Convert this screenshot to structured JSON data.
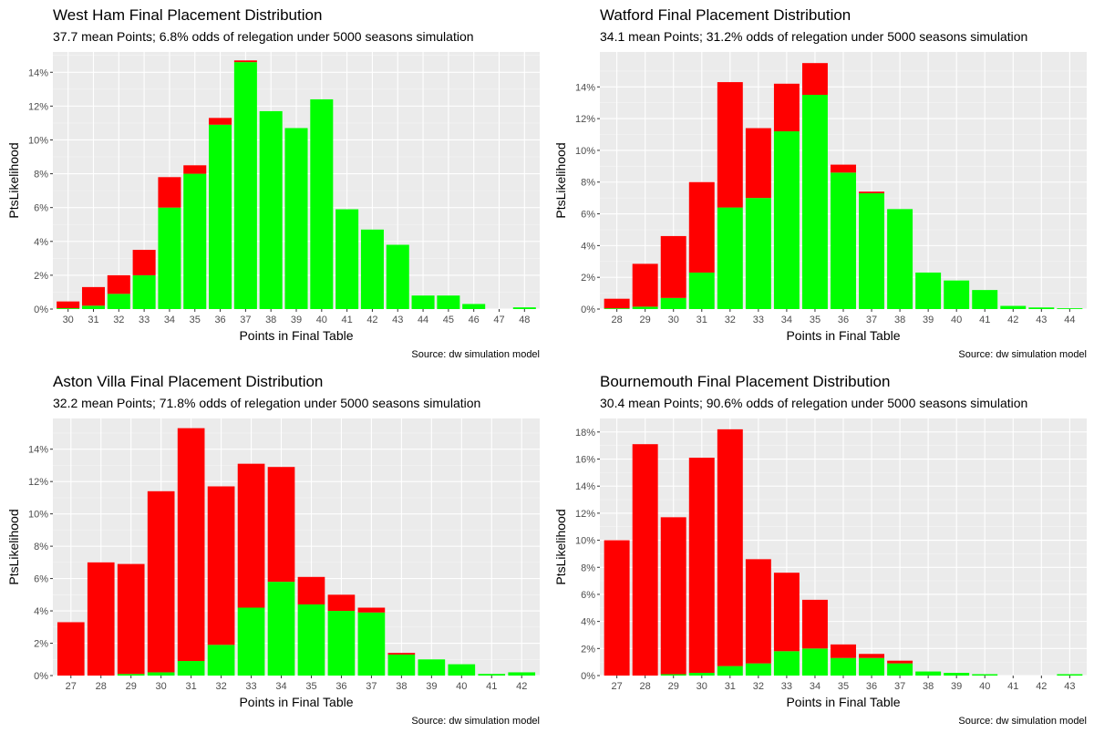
{
  "chart_data": [
    {
      "type": "bar",
      "stacked": true,
      "title": "West Ham Final Placement Distribution",
      "subtitle": "37.7 mean Points; 6.8% odds of relegation under 5000 seasons simulation",
      "xlabel": "Points in Final Table",
      "ylabel": "PtsLikelihood",
      "caption": "Source:  dw simulation model",
      "ylim": [
        0,
        15.2
      ],
      "yticks": [
        0,
        2,
        4,
        6,
        8,
        10,
        12,
        14
      ],
      "ytick_labels": [
        "0%",
        "2%",
        "4%",
        "6%",
        "8%",
        "10%",
        "12%",
        "14%"
      ],
      "categories": [
        "30",
        "31",
        "32",
        "33",
        "34",
        "35",
        "36",
        "37",
        "38",
        "39",
        "40",
        "41",
        "42",
        "43",
        "44",
        "45",
        "46",
        "47",
        "48"
      ],
      "series": [
        {
          "color": "#00ff00",
          "values": [
            0.05,
            0.2,
            0.9,
            2.0,
            6.0,
            8.0,
            10.9,
            14.6,
            11.7,
            10.7,
            12.4,
            5.9,
            4.7,
            3.8,
            0.8,
            0.8,
            0.3,
            0,
            0.1
          ]
        },
        {
          "color": "#ff0000",
          "values": [
            0.4,
            1.1,
            1.1,
            1.5,
            1.8,
            0.5,
            0.4,
            0.1,
            0,
            0,
            0,
            0,
            0,
            0,
            0,
            0,
            0,
            0,
            0
          ]
        }
      ]
    },
    {
      "type": "bar",
      "stacked": true,
      "title": "Watford Final Placement Distribution",
      "subtitle": "34.1 mean Points; 31.2% odds of relegation under 5000 seasons simulation",
      "xlabel": "Points in Final Table",
      "ylabel": "PtsLikelihood",
      "caption": "Source:  dw simulation model",
      "ylim": [
        0,
        16.2
      ],
      "yticks": [
        0,
        2,
        4,
        6,
        8,
        10,
        12,
        14
      ],
      "ytick_labels": [
        "0%",
        "2%",
        "4%",
        "6%",
        "8%",
        "10%",
        "12%",
        "14%"
      ],
      "categories": [
        "28",
        "29",
        "30",
        "31",
        "32",
        "33",
        "34",
        "35",
        "36",
        "37",
        "38",
        "39",
        "40",
        "41",
        "42",
        "43",
        "44"
      ],
      "series": [
        {
          "color": "#00ff00",
          "values": [
            0.05,
            0.15,
            0.7,
            2.3,
            6.4,
            7.0,
            11.2,
            13.5,
            8.6,
            7.3,
            6.3,
            2.3,
            1.8,
            1.2,
            0.2,
            0.1,
            0.05
          ]
        },
        {
          "color": "#ff0000",
          "values": [
            0.6,
            2.7,
            3.9,
            5.7,
            7.9,
            4.4,
            3.0,
            2.0,
            0.5,
            0.1,
            0,
            0,
            0,
            0,
            0,
            0,
            0
          ]
        }
      ]
    },
    {
      "type": "bar",
      "stacked": true,
      "title": "Aston Villa Final Placement Distribution",
      "subtitle": "32.2 mean Points; 71.8% odds of relegation under 5000 seasons simulation",
      "xlabel": "Points in Final Table",
      "ylabel": "PtsLikelihood",
      "caption": "Source:  dw simulation model",
      "ylim": [
        0,
        15.9
      ],
      "yticks": [
        0,
        2,
        4,
        6,
        8,
        10,
        12,
        14
      ],
      "ytick_labels": [
        "0%",
        "2%",
        "4%",
        "6%",
        "8%",
        "10%",
        "12%",
        "14%"
      ],
      "categories": [
        "27",
        "28",
        "29",
        "30",
        "31",
        "32",
        "33",
        "34",
        "35",
        "36",
        "37",
        "38",
        "39",
        "40",
        "41",
        "42"
      ],
      "series": [
        {
          "color": "#00ff00",
          "values": [
            0,
            0,
            0.1,
            0.2,
            0.9,
            1.9,
            4.2,
            5.8,
            4.4,
            4.0,
            3.9,
            1.3,
            1.0,
            0.7,
            0.1,
            0.2
          ]
        },
        {
          "color": "#ff0000",
          "values": [
            3.3,
            7.0,
            6.8,
            11.2,
            14.4,
            9.8,
            8.9,
            7.1,
            1.7,
            1.0,
            0.3,
            0.1,
            0,
            0,
            0,
            0
          ]
        }
      ]
    },
    {
      "type": "bar",
      "stacked": true,
      "title": "Bournemouth Final Placement Distribution",
      "subtitle": "30.4 mean Points; 90.6% odds of relegation under 5000 seasons simulation",
      "xlabel": "Points in Final Table",
      "ylabel": "PtsLikelihood",
      "caption": "Source:  dw simulation model",
      "ylim": [
        0,
        19.0
      ],
      "yticks": [
        0,
        2,
        4,
        6,
        8,
        10,
        12,
        14,
        16,
        18
      ],
      "ytick_labels": [
        "0%",
        "2%",
        "4%",
        "6%",
        "8%",
        "10%",
        "12%",
        "14%",
        "16%",
        "18%"
      ],
      "categories": [
        "27",
        "28",
        "29",
        "30",
        "31",
        "32",
        "33",
        "34",
        "35",
        "36",
        "37",
        "38",
        "39",
        "40",
        "41",
        "42",
        "43"
      ],
      "series": [
        {
          "color": "#00ff00",
          "values": [
            0,
            0,
            0.1,
            0.2,
            0.7,
            0.9,
            1.8,
            2.0,
            1.3,
            1.3,
            0.9,
            0.3,
            0.2,
            0.1,
            0,
            0,
            0.1
          ]
        },
        {
          "color": "#ff0000",
          "values": [
            10.0,
            17.1,
            11.6,
            15.9,
            17.5,
            7.7,
            5.8,
            3.6,
            1.0,
            0.3,
            0.2,
            0,
            0,
            0,
            0,
            0,
            0
          ]
        }
      ]
    }
  ]
}
